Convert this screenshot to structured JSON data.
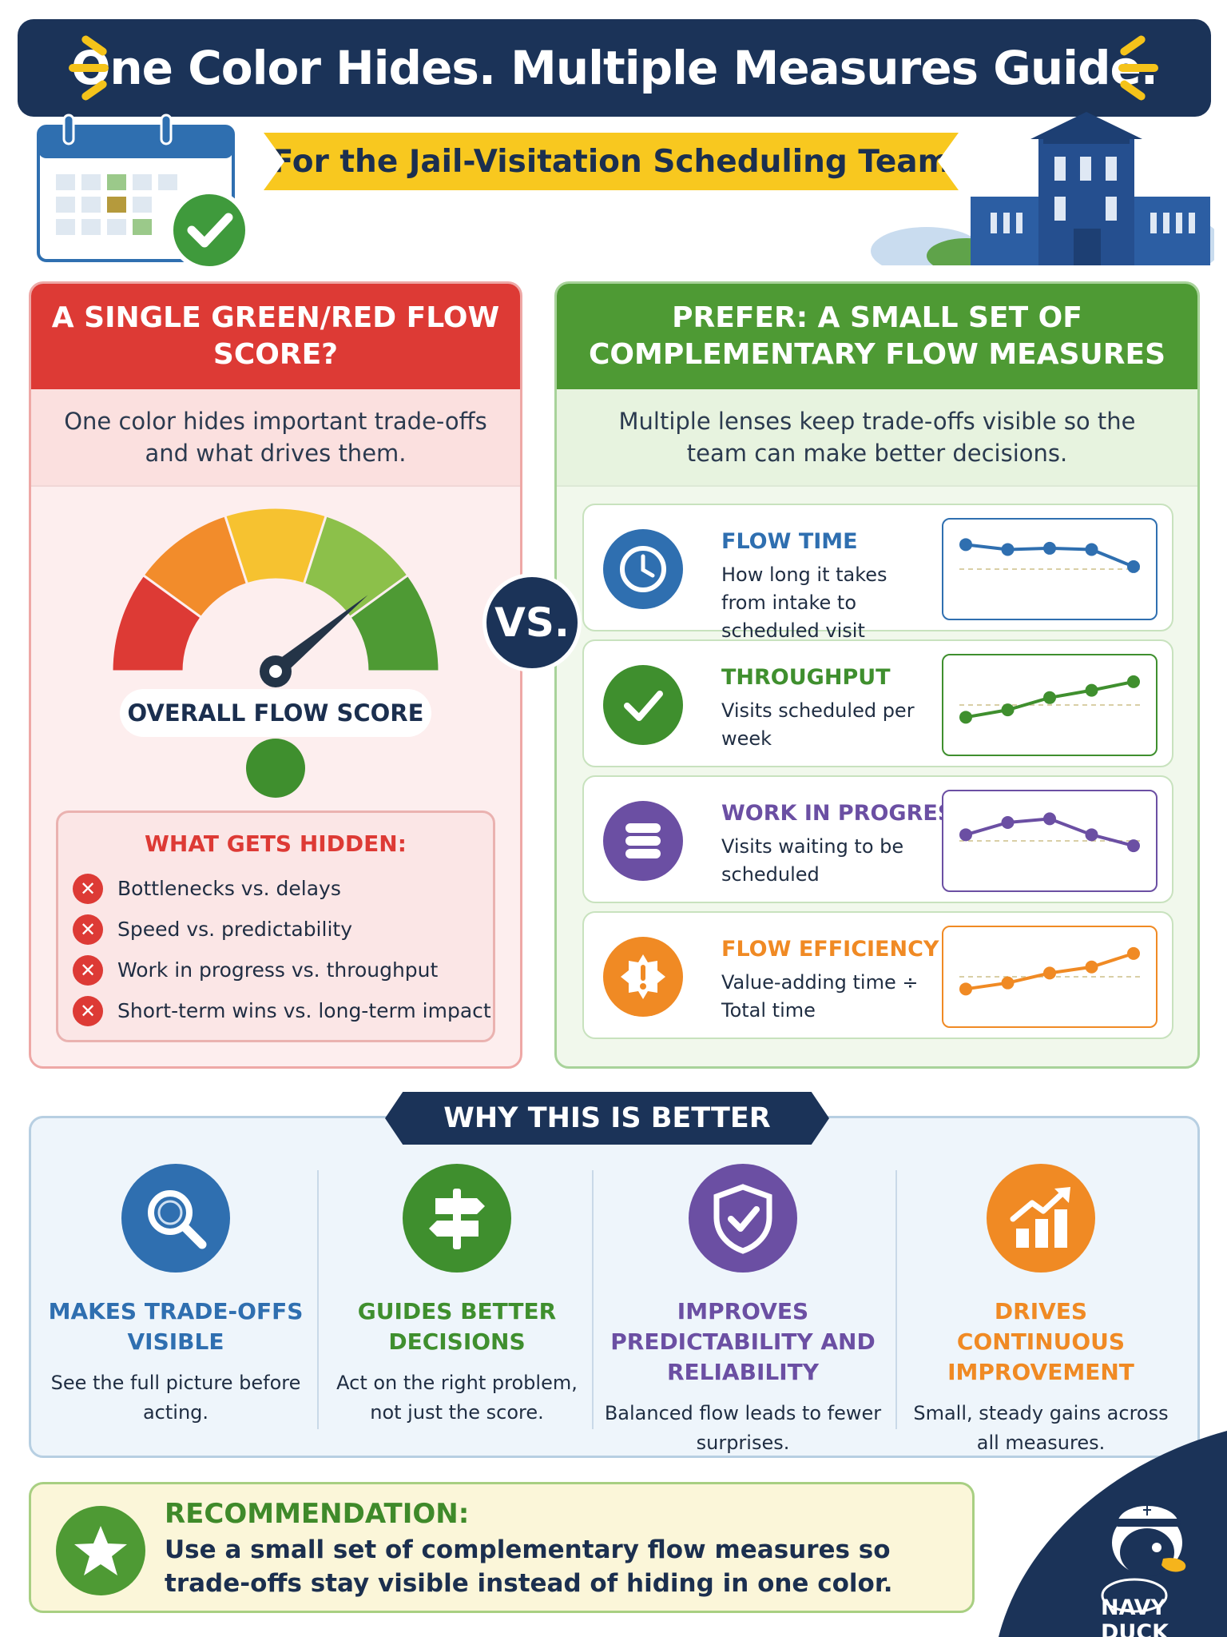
{
  "header": {
    "title": "One Color Hides. Multiple Measures Guide.",
    "subtitle": "For the Jail-Visitation Scheduling Team"
  },
  "left_panel": {
    "heading": "A SINGLE GREEN/RED FLOW SCORE?",
    "description": "One color hides important trade-offs and what drives them.",
    "gauge_label": "OVERALL FLOW SCORE",
    "hidden_title": "WHAT GETS HIDDEN:",
    "hidden_items": [
      "Bottlenecks vs. delays",
      "Speed vs. predictability",
      "Work in progress vs. throughput",
      "Short-term wins vs. long-term impact"
    ]
  },
  "vs_label": "VS.",
  "right_panel": {
    "heading": "PREFER: A SMALL SET OF COMPLEMENTARY FLOW MEASURES",
    "description": "Multiple lenses keep trade-offs visible so the team can make better decisions.",
    "measures": [
      {
        "title": "FLOW TIME",
        "desc": "How long it takes from intake to scheduled visit",
        "color": "#2f6fb0",
        "icon": "clock-icon",
        "trend": [
          5,
          4.6,
          4.7,
          4.6,
          3.2
        ]
      },
      {
        "title": "THROUGHPUT",
        "desc": "Visits scheduled per week",
        "color": "#3f8f2e",
        "icon": "check-icon",
        "trend": [
          2,
          2.6,
          3.6,
          4.2,
          4.9
        ]
      },
      {
        "title": "WORK IN PROGRESS",
        "desc": "Visits waiting to be scheduled",
        "color": "#6b4fa3",
        "icon": "stack-icon",
        "trend": [
          3.5,
          4.5,
          4.8,
          3.5,
          2.6
        ]
      },
      {
        "title": "FLOW EFFICIENCY",
        "desc": "Value-adding time ÷ Total time",
        "color": "#f08a24",
        "icon": "alert-badge-icon",
        "trend": [
          2,
          2.5,
          3.3,
          3.8,
          4.9
        ]
      }
    ]
  },
  "why": {
    "ribbon": "WHY THIS IS BETTER",
    "items": [
      {
        "title": "MAKES TRADE-OFFS VISIBLE",
        "desc": "See the full picture before acting.",
        "color": "#2f6fb0",
        "icon": "magnifier-icon"
      },
      {
        "title": "GUIDES BETTER DECISIONS",
        "desc": "Act on the right problem, not just the score.",
        "color": "#3f8f2e",
        "icon": "signpost-icon"
      },
      {
        "title": "IMPROVES PREDICTABILITY AND RELIABILITY",
        "desc": "Balanced flow leads to fewer surprises.",
        "color": "#6b4fa3",
        "icon": "shield-check-icon"
      },
      {
        "title": "DRIVES CONTINUOUS IMPROVEMENT",
        "desc": "Small, steady gains across all measures.",
        "color": "#f08a24",
        "icon": "growth-chart-icon"
      }
    ]
  },
  "recommendation": {
    "title": "RECOMMENDATION:",
    "text": "Use a small set of complementary flow measures so trade-offs stay visible instead of hiding in one color."
  },
  "brand": {
    "name": "NAVY DUCK"
  },
  "colors": {
    "navy": "#1b3358",
    "red": "#dd3a35",
    "green": "#4e9a34",
    "yellow": "#f8c81f"
  }
}
